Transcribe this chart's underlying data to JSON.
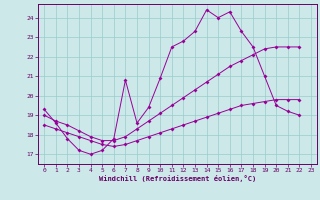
{
  "xlabel": "Windchill (Refroidissement éolien,°C)",
  "background_color": "#cce8e8",
  "grid_color": "#99cccc",
  "line_color": "#990099",
  "xlim": [
    -0.5,
    23.5
  ],
  "ylim": [
    16.5,
    24.7
  ],
  "yticks": [
    17,
    18,
    19,
    20,
    21,
    22,
    23,
    24
  ],
  "xticks": [
    0,
    1,
    2,
    3,
    4,
    5,
    6,
    7,
    8,
    9,
    10,
    11,
    12,
    13,
    14,
    15,
    16,
    17,
    18,
    19,
    20,
    21,
    22,
    23
  ],
  "line1_x": [
    0,
    1,
    2,
    3,
    4,
    5,
    6,
    7,
    8,
    9,
    10,
    11,
    12,
    13,
    14,
    15,
    16,
    17,
    18,
    19,
    20,
    21,
    22
  ],
  "line1_y": [
    19.3,
    18.6,
    17.8,
    17.2,
    17.0,
    17.2,
    17.8,
    20.8,
    18.6,
    19.4,
    20.9,
    22.5,
    22.8,
    23.3,
    24.4,
    24.0,
    24.3,
    23.3,
    22.5,
    21.0,
    19.5,
    19.2,
    19.0
  ],
  "line2_x": [
    0,
    1,
    2,
    3,
    4,
    5,
    6,
    7,
    8,
    9,
    10,
    11,
    12,
    13,
    14,
    15,
    16,
    17,
    18,
    19,
    20,
    21,
    22
  ],
  "line2_y": [
    19.0,
    18.7,
    18.5,
    18.2,
    17.9,
    17.7,
    17.7,
    17.9,
    18.3,
    18.7,
    19.1,
    19.5,
    19.9,
    20.3,
    20.7,
    21.1,
    21.5,
    21.8,
    22.1,
    22.4,
    22.5,
    22.5,
    22.5
  ],
  "line3_x": [
    0,
    1,
    2,
    3,
    4,
    5,
    6,
    7,
    8,
    9,
    10,
    11,
    12,
    13,
    14,
    15,
    16,
    17,
    18,
    19,
    20,
    21,
    22
  ],
  "line3_y": [
    18.5,
    18.3,
    18.1,
    17.9,
    17.7,
    17.5,
    17.4,
    17.5,
    17.7,
    17.9,
    18.1,
    18.3,
    18.5,
    18.7,
    18.9,
    19.1,
    19.3,
    19.5,
    19.6,
    19.7,
    19.8,
    19.8,
    19.8
  ]
}
